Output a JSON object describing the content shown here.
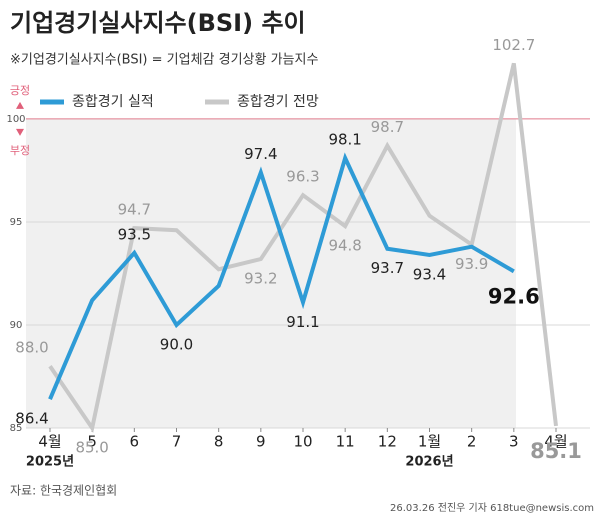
{
  "chart_data": {
    "type": "line",
    "title": "기업경기실사지수(BSI) 추이",
    "subtitle": "※기업경기실사지수(BSI) = 기업체감 경기상황 가늠지수",
    "categories": [
      "4월",
      "5",
      "6",
      "7",
      "8",
      "9",
      "10",
      "11",
      "12",
      "1월",
      "2",
      "3",
      "4월"
    ],
    "year_labels": [
      "2025년",
      null,
      null,
      null,
      null,
      null,
      null,
      null,
      null,
      "2026년",
      null,
      null,
      null
    ],
    "series": [
      {
        "name": "종합경기 실적",
        "color": "#2e9bd6",
        "values": [
          86.4,
          91.2,
          93.5,
          90.0,
          91.9,
          97.4,
          91.1,
          98.1,
          93.7,
          93.4,
          93.8,
          92.6,
          null
        ],
        "value_labels": [
          "86.4",
          null,
          "93.5",
          "90.0",
          null,
          "97.4",
          "91.1",
          "98.1",
          "93.7",
          "93.4",
          null,
          "92.6",
          null
        ]
      },
      {
        "name": "종합경기 전망",
        "color": "#c8c8c8",
        "values": [
          88.0,
          85.0,
          94.7,
          94.6,
          92.7,
          93.2,
          96.3,
          94.8,
          98.7,
          95.3,
          93.9,
          102.7,
          85.1
        ],
        "value_labels": [
          "88.0",
          "85.0",
          "94.7",
          null,
          null,
          "93.2",
          "96.3",
          "94.8",
          "98.7",
          null,
          "93.9",
          "102.7",
          "85.1"
        ]
      }
    ],
    "ylim": [
      85,
      103.2
    ],
    "yticks": [
      85,
      90,
      95,
      100
    ],
    "reference_line": 100,
    "positive_label": "긍정",
    "negative_label": "부정",
    "source": "자료: 한국경제인협회",
    "credit": "26.03.26 전진우 기자 618tue@newsis.com"
  }
}
